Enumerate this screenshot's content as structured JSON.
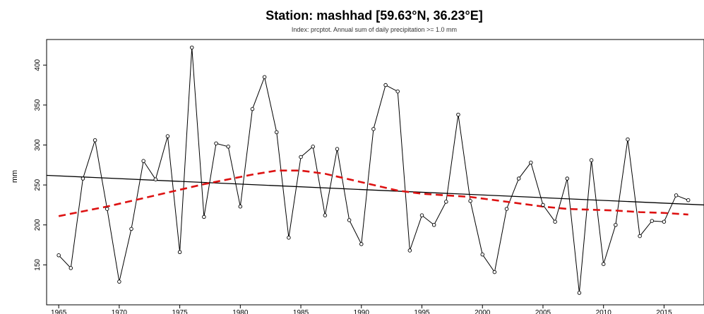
{
  "chart_data": {
    "type": "line",
    "title": "Station: mashhad [59.63°N, 36.23°E]",
    "subtitle": "Index: prcptot. Annual sum of daily precipitation >= 1.0 mm",
    "xlabel": "",
    "ylabel": "mm",
    "xlim": [
      1964,
      2018.3
    ],
    "ylim": [
      100,
      432
    ],
    "x_ticks": [
      1965,
      1970,
      1975,
      1980,
      1985,
      1990,
      1995,
      2000,
      2005,
      2010,
      2015
    ],
    "y_ticks": [
      150,
      200,
      250,
      300,
      350,
      400
    ],
    "grid": false,
    "legend": "none",
    "x": [
      1965,
      1966,
      1967,
      1968,
      1969,
      1970,
      1971,
      1972,
      1973,
      1974,
      1975,
      1976,
      1977,
      1978,
      1979,
      1980,
      1981,
      1982,
      1983,
      1984,
      1985,
      1986,
      1987,
      1988,
      1989,
      1990,
      1991,
      1992,
      1993,
      1994,
      1995,
      1996,
      1997,
      1998,
      1999,
      2000,
      2001,
      2002,
      2003,
      2004,
      2005,
      2006,
      2007,
      2008,
      2009,
      2010,
      2011,
      2012,
      2013,
      2014,
      2015,
      2016,
      2017
    ],
    "series": [
      {
        "values": [
          162,
          146,
          258,
          306,
          220,
          129,
          195,
          280,
          257,
          311,
          166,
          422,
          210,
          302,
          298,
          223,
          345,
          385,
          316,
          184,
          285,
          298,
          212,
          295,
          206,
          176,
          320,
          375,
          367,
          168,
          212,
          200,
          229,
          338,
          230,
          163,
          141,
          220,
          258,
          278,
          225,
          204,
          258,
          115,
          281,
          151,
          200,
          307,
          186,
          205,
          204,
          237,
          231
        ],
        "color": "#000000"
      },
      {
        "x": [
          1965,
          1967,
          1969,
          1971,
          1973,
          1975,
          1977,
          1979,
          1981,
          1983,
          1985,
          1987,
          1989,
          1991,
          1993,
          1995,
          1997,
          1999,
          2001,
          2003,
          2005,
          2007,
          2009,
          2011,
          2013,
          2015,
          2017
        ],
        "values": [
          211,
          217,
          223,
          230,
          237,
          244,
          251,
          257,
          263,
          268,
          268,
          264,
          257,
          250,
          243,
          239,
          237,
          235,
          231,
          227,
          223,
          220,
          219,
          218,
          216,
          215,
          213
        ],
        "color": "#dd1111",
        "style": "dashed"
      },
      {
        "x": [
          1964,
          2018.3
        ],
        "values": [
          262,
          225
        ],
        "color": "#000000"
      }
    ]
  }
}
